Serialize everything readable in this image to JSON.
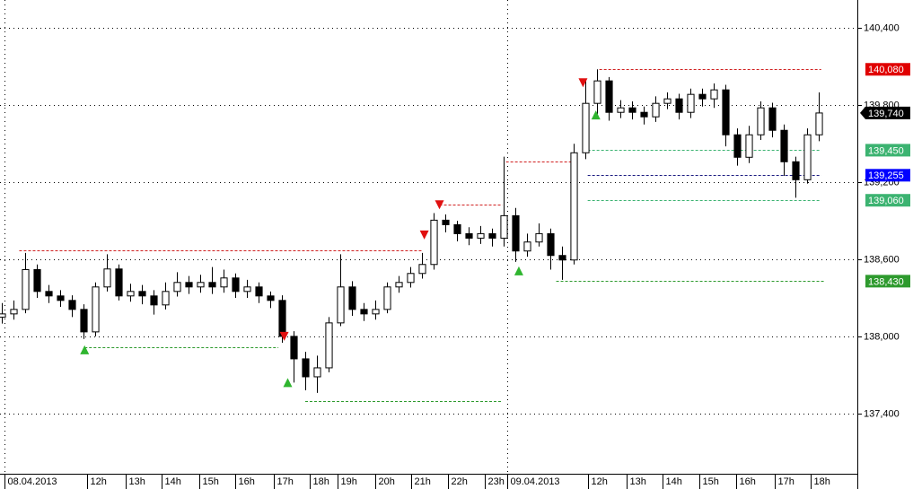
{
  "chart_data": {
    "type": "candlestick",
    "open": [
      138150,
      138175,
      138210,
      138520,
      138350,
      138315,
      138280,
      138210,
      138035,
      138385,
      138525,
      138315,
      138350,
      138315,
      138245,
      138350,
      138420,
      138385,
      138420,
      138385,
      138455,
      138350,
      138385,
      138315,
      138280,
      138000,
      137825,
      137685,
      137755,
      138105,
      138385,
      138210,
      138175,
      138210,
      138385,
      138420,
      138490,
      138560,
      138905,
      138870,
      138800,
      138765,
      138800,
      138765,
      138940,
      138665,
      138735,
      138800,
      138630,
      138595,
      139430,
      139815,
      139990,
      139745,
      139780,
      139745,
      139710,
      139815,
      139850,
      139745,
      139885,
      139850,
      139920,
      139570,
      139395,
      139570,
      139780,
      139605,
      139360,
      139220,
      139570
    ],
    "high": [
      138260,
      138280,
      138650,
      138560,
      138400,
      138360,
      138320,
      138250,
      138420,
      138640,
      138560,
      138410,
      138400,
      138360,
      138420,
      138500,
      138470,
      138480,
      138540,
      138520,
      138490,
      138440,
      138420,
      138350,
      138320,
      138040,
      137880,
      137850,
      138150,
      138640,
      138430,
      138260,
      138280,
      138420,
      138470,
      138540,
      138650,
      138960,
      138950,
      138900,
      138850,
      138860,
      138840,
      139400,
      139000,
      138800,
      138880,
      138840,
      138700,
      139500,
      139990,
      140080,
      140020,
      139840,
      139830,
      139790,
      139870,
      139900,
      139890,
      139930,
      139930,
      139970,
      139960,
      139620,
      139640,
      139830,
      139820,
      139650,
      139400,
      139620,
      139900
    ],
    "low": [
      138100,
      138130,
      138180,
      138300,
      138260,
      138230,
      138150,
      137980,
      138000,
      138350,
      138280,
      138270,
      138250,
      138170,
      138210,
      138310,
      138330,
      138340,
      138330,
      138340,
      138300,
      138300,
      138260,
      138220,
      137950,
      137640,
      137580,
      137560,
      137720,
      138080,
      138160,
      138120,
      138130,
      138180,
      138340,
      138380,
      138450,
      138520,
      138810,
      138740,
      138710,
      138720,
      138700,
      138700,
      138580,
      138620,
      138700,
      138520,
      138440,
      138560,
      139380,
      139720,
      139680,
      139700,
      139690,
      139650,
      139670,
      139770,
      139690,
      139700,
      139790,
      139780,
      139480,
      139330,
      139350,
      139530,
      139550,
      139250,
      139080,
      139190,
      139520
    ],
    "close": [
      138175,
      138210,
      138520,
      138350,
      138315,
      138280,
      138210,
      138035,
      138385,
      138525,
      138315,
      138350,
      138315,
      138245,
      138350,
      138420,
      138385,
      138420,
      138385,
      138455,
      138350,
      138385,
      138315,
      138280,
      138000,
      137825,
      137685,
      137755,
      138105,
      138385,
      138210,
      138175,
      138210,
      138385,
      138420,
      138490,
      138560,
      138905,
      138870,
      138800,
      138765,
      138800,
      138765,
      138940,
      138665,
      138735,
      138800,
      138630,
      138595,
      139430,
      139815,
      139990,
      139745,
      139780,
      139745,
      139710,
      139815,
      139850,
      139745,
      139885,
      139850,
      139920,
      139570,
      139395,
      139570,
      139780,
      139605,
      139360,
      139220,
      139570,
      139740
    ],
    "xlim": [
      -0.15,
      73.3
    ],
    "xticks": [
      {
        "value": 0.2,
        "label": "08.04.2013"
      },
      {
        "value": 7.3,
        "label": "12h"
      },
      {
        "value": 10.6,
        "label": "13h"
      },
      {
        "value": 13.7,
        "label": "14h"
      },
      {
        "value": 16.9,
        "label": "15h"
      },
      {
        "value": 20,
        "label": "16h"
      },
      {
        "value": 23.3,
        "label": "17h"
      },
      {
        "value": 26.4,
        "label": "18h"
      },
      {
        "value": 28.8,
        "label": "19h"
      },
      {
        "value": 32,
        "label": "20h"
      },
      {
        "value": 35.1,
        "label": "21h"
      },
      {
        "value": 38.2,
        "label": "22h"
      },
      {
        "value": 41.4,
        "label": "23h"
      },
      {
        "value": 43.3,
        "label": "09.04.2013"
      },
      {
        "value": 50.2,
        "label": "12h"
      },
      {
        "value": 53.5,
        "label": "13h"
      },
      {
        "value": 56.6,
        "label": "14h"
      },
      {
        "value": 59.8,
        "label": "15h"
      },
      {
        "value": 62.9,
        "label": "16h"
      },
      {
        "value": 66.2,
        "label": "17h"
      },
      {
        "value": 69.3,
        "label": "18h"
      }
    ],
    "ylim": [
      136930,
      140620
    ],
    "yticks": [
      {
        "value": 137400,
        "label": "137,400"
      },
      {
        "value": 138000,
        "label": "138,000"
      },
      {
        "value": 138600,
        "label": "138,600"
      },
      {
        "value": 139200,
        "label": "139,200"
      },
      {
        "value": 139800,
        "label": "139,800"
      },
      {
        "value": 140400,
        "label": "140,400"
      }
    ],
    "grid": true,
    "levels": [
      {
        "value": 138670,
        "x": [
          1.5,
          36
        ],
        "color": "#d02020"
      },
      {
        "value": 139025,
        "x": [
          37.5,
          42.9
        ],
        "color": "#d02020"
      },
      {
        "value": 139365,
        "x": [
          43.2,
          49
        ],
        "color": "#d02020"
      },
      {
        "value": 140080,
        "x": [
          51.2,
          70.2
        ],
        "color": "#d02020"
      },
      {
        "value": 137915,
        "x": [
          7.1,
          23.7
        ],
        "color": "#2e9a2e"
      },
      {
        "value": 137495,
        "x": [
          26,
          42.9
        ],
        "color": "#2e9a2e"
      },
      {
        "value": 138430,
        "x": [
          47.5,
          70.5
        ],
        "color": "#2e9a2e"
      },
      {
        "value": 139450,
        "x": [
          50.2,
          70.2
        ],
        "color": "#3cb371"
      },
      {
        "value": 139255,
        "x": [
          50.2,
          70.2
        ],
        "color": "#1a1a80"
      },
      {
        "value": 139060,
        "x": [
          50.2,
          70.2
        ],
        "color": "#3cb371"
      }
    ],
    "signals": [
      {
        "x": 7.1,
        "y": 137895,
        "dir": "up"
      },
      {
        "x": 24.5,
        "y": 137640,
        "dir": "up"
      },
      {
        "x": 44.3,
        "y": 138510,
        "dir": "up"
      },
      {
        "x": 50.9,
        "y": 139725,
        "dir": "up"
      },
      {
        "x": 49.8,
        "y": 139975,
        "dir": "down"
      },
      {
        "x": 37.5,
        "y": 139025,
        "dir": "down"
      },
      {
        "x": 36.2,
        "y": 138790,
        "dir": "down"
      },
      {
        "x": 24.2,
        "y": 138000,
        "dir": "down"
      }
    ],
    "price_tags": [
      {
        "value": 140080,
        "label": "140,080",
        "color": "#e00000"
      },
      {
        "value": 139740,
        "label": "139,740",
        "color": "#000000"
      },
      {
        "value": 139450,
        "label": "139,450",
        "color": "#3cb371"
      },
      {
        "value": 139255,
        "label": "139,255",
        "color": "#0000ff"
      },
      {
        "value": 139060,
        "label": "139,060",
        "color": "#3cb371"
      },
      {
        "value": 138430,
        "label": "138,430",
        "color": "#2e9a2e"
      }
    ]
  }
}
